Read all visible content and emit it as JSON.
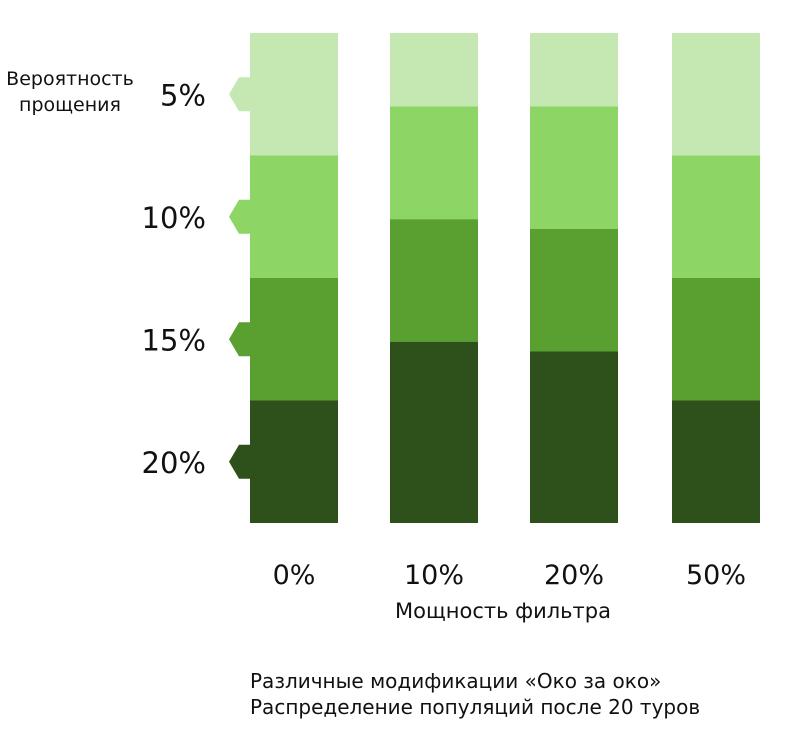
{
  "chart_data": {
    "type": "stacked-bar",
    "x_axis": {
      "label": "Мощность фильтра",
      "categories": [
        "0%",
        "10%",
        "20%",
        "50%"
      ]
    },
    "legend": {
      "title_line1": "Вероятность",
      "title_line2": "прощения",
      "placement": "left",
      "order": "top-to-bottom"
    },
    "series": [
      {
        "name": "5%",
        "color": "#c5e8b2",
        "values": [
          25,
          15,
          15,
          25
        ]
      },
      {
        "name": "10%",
        "color": "#8dd565",
        "values": [
          25,
          23,
          25,
          25
        ]
      },
      {
        "name": "15%",
        "color": "#5aa030",
        "values": [
          25,
          25,
          25,
          25
        ]
      },
      {
        "name": "20%",
        "color": "#2e511c",
        "values": [
          25,
          37,
          35,
          25
        ]
      }
    ],
    "y_range": [
      0,
      100
    ],
    "stacking": "100-percent, first series on top"
  },
  "caption": {
    "line1": "Различные модификации «Око за око»",
    "line2": "Распределение популяций после 20 туров"
  }
}
